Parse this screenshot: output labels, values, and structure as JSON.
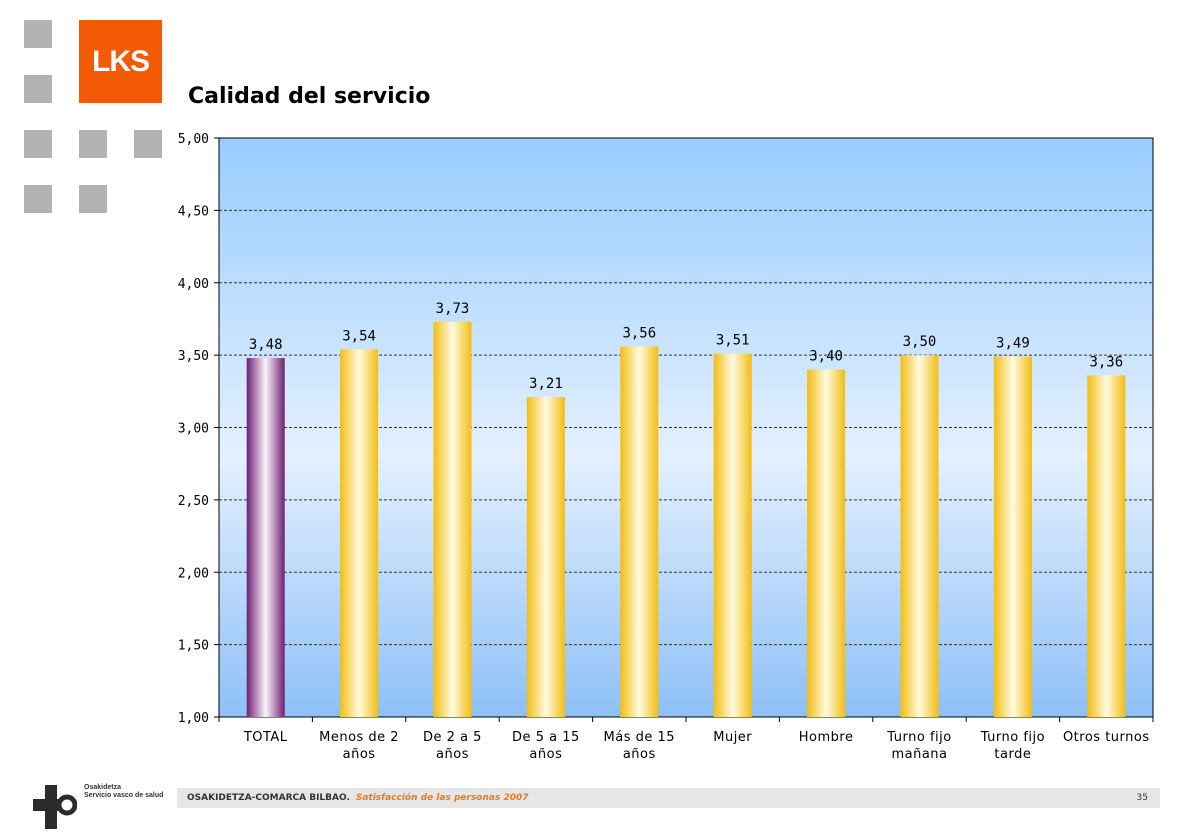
{
  "header": {
    "logo_text": "LKS",
    "title": "Calidad del servicio"
  },
  "chart_data": {
    "type": "bar",
    "title": "Calidad del servicio",
    "categories": [
      "TOTAL",
      "Menos de 2 años",
      "De 2 a 5 años",
      "De 5 a 15 años",
      "Más de 15 años",
      "Mujer",
      "Hombre",
      "Turno fijo mañana",
      "Turno fijo tarde",
      "Otros turnos"
    ],
    "category_lines": [
      [
        "TOTAL"
      ],
      [
        "Menos de 2",
        "años"
      ],
      [
        "De 2 a 5",
        "años"
      ],
      [
        "De 5 a 15",
        "años"
      ],
      [
        "Más de 15",
        "años"
      ],
      [
        "Mujer"
      ],
      [
        "Hombre"
      ],
      [
        "Turno fijo",
        "mañana"
      ],
      [
        "Turno fijo",
        "tarde"
      ],
      [
        "Otros turnos"
      ]
    ],
    "values": [
      3.48,
      3.54,
      3.73,
      3.21,
      3.56,
      3.51,
      3.4,
      3.5,
      3.49,
      3.36
    ],
    "data_labels": [
      "3,48",
      "3,54",
      "3,73",
      "3,21",
      "3,56",
      "3,51",
      "3,40",
      "3,50",
      "3,49",
      "3,36"
    ],
    "ylim": [
      1.0,
      5.0
    ],
    "yticks": [
      "1,00",
      "1,50",
      "2,00",
      "2,50",
      "3,00",
      "3,50",
      "4,00",
      "4,50",
      "5,00"
    ],
    "grid": true,
    "colors": {
      "total_bar": "#7a2a7e",
      "other_bars": "#f5c31c",
      "plot_bg_top": "#99ccff",
      "plot_bg_bottom": "#8ec0f6"
    }
  },
  "footer": {
    "org": "OSAKIDETZA-COMARCA BILBAO.",
    "subtitle": "Satisfacción de las personas 2007",
    "page": "35",
    "osakidetza_line1": "Osakidetza",
    "osakidetza_line2": "Servicio vasco de salud"
  }
}
